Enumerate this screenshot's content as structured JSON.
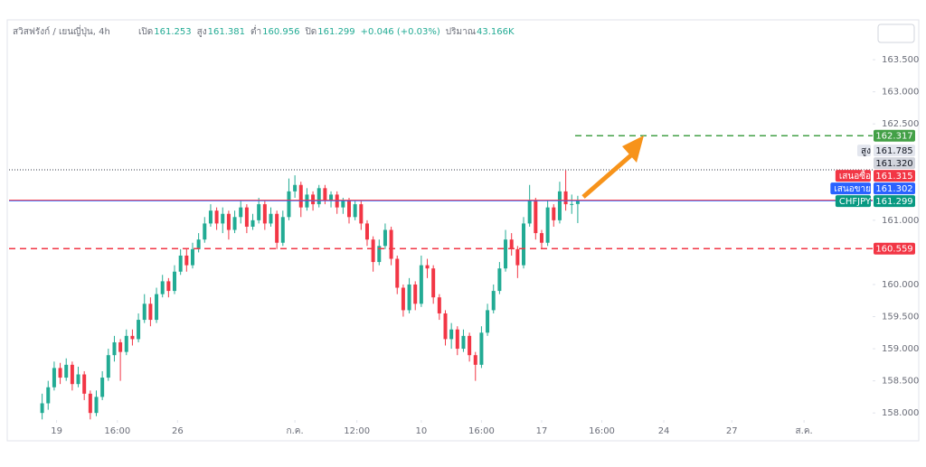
{
  "chart_data": {
    "type": "candlestick",
    "symbol": "สวิสฟรังก์ / เยนญี่ปุ่น, 4h",
    "legend_values": [
      {
        "label": "เปิด",
        "value": 161.253
      },
      {
        "label": "สูง",
        "value": 161.381
      },
      {
        "label": "ต่ำ",
        "value": 160.956
      },
      {
        "label": "ปิด",
        "value": 161.299
      }
    ],
    "change": "+0.046 (+0.03%)",
    "volume_label": "ปริมาณ",
    "volume": "43.166K",
    "up_color": "#22ab94",
    "down_color": "#f23645",
    "open": [
      158.0,
      158.15,
      158.4,
      158.7,
      158.55,
      158.75,
      158.45,
      158.6,
      158.3,
      158.0,
      158.25,
      158.55,
      158.9,
      159.1,
      158.95,
      159.2,
      159.15,
      159.45,
      159.7,
      159.45,
      159.85,
      160.05,
      159.9,
      160.2,
      160.45,
      160.3,
      160.55,
      160.7,
      160.95,
      161.15,
      160.95,
      161.1,
      160.85,
      161.05,
      161.2,
      160.9,
      161.0,
      161.25,
      160.95,
      161.1,
      160.65,
      161.05,
      161.45,
      161.55,
      161.2,
      161.4,
      161.25,
      161.5,
      161.3,
      161.4,
      161.2,
      161.3,
      161.05,
      161.25,
      160.95,
      160.7,
      160.35,
      160.6,
      160.85,
      160.4,
      159.95,
      159.6,
      160.0,
      159.7,
      160.3,
      160.25,
      159.8,
      159.55,
      159.15,
      159.3,
      159.0,
      159.2,
      158.9,
      158.75,
      159.25,
      159.6,
      159.9,
      160.25,
      160.7,
      160.55,
      160.3,
      160.95,
      161.3,
      160.8,
      160.65,
      161.2,
      161.0,
      161.45,
      161.25,
      161.253
    ],
    "high": [
      158.3,
      158.5,
      158.8,
      158.78,
      158.85,
      158.8,
      158.72,
      158.65,
      158.35,
      158.35,
      158.65,
      159.0,
      159.2,
      159.15,
      159.3,
      159.3,
      159.55,
      159.85,
      159.8,
      159.95,
      160.15,
      160.1,
      160.3,
      160.55,
      160.55,
      160.65,
      160.8,
      161.05,
      161.25,
      161.2,
      161.2,
      161.15,
      161.15,
      161.3,
      161.25,
      161.1,
      161.35,
      161.3,
      161.2,
      161.15,
      161.15,
      161.65,
      161.7,
      161.6,
      161.5,
      161.45,
      161.55,
      161.55,
      161.45,
      161.45,
      161.35,
      161.35,
      161.3,
      161.3,
      161.0,
      160.75,
      160.7,
      160.95,
      160.9,
      160.45,
      160.0,
      160.1,
      160.05,
      160.45,
      160.4,
      160.3,
      159.85,
      159.6,
      159.4,
      159.35,
      159.3,
      159.25,
      158.95,
      159.35,
      159.7,
      160.0,
      160.35,
      160.85,
      160.8,
      160.6,
      161.05,
      161.55,
      161.35,
      160.85,
      161.3,
      161.25,
      161.6,
      161.785,
      161.4,
      161.381
    ],
    "low": [
      157.9,
      158.05,
      158.35,
      158.45,
      158.5,
      158.35,
      158.4,
      158.2,
      157.9,
      157.95,
      158.2,
      158.5,
      158.8,
      158.5,
      158.9,
      159.05,
      159.1,
      159.4,
      159.35,
      159.4,
      159.8,
      159.8,
      159.85,
      160.15,
      160.2,
      160.25,
      160.5,
      160.65,
      160.9,
      160.85,
      160.8,
      160.7,
      160.8,
      160.95,
      160.8,
      160.85,
      160.95,
      160.85,
      160.9,
      160.55,
      160.6,
      161.0,
      161.35,
      161.05,
      161.15,
      161.15,
      161.2,
      161.25,
      161.2,
      161.1,
      161.1,
      160.95,
      161.0,
      160.85,
      160.6,
      160.2,
      160.3,
      160.55,
      160.3,
      159.85,
      159.5,
      159.55,
      159.6,
      159.65,
      160.1,
      159.7,
      159.45,
      159.05,
      159.0,
      158.9,
      158.95,
      158.8,
      158.5,
      158.7,
      159.2,
      159.55,
      159.85,
      160.2,
      160.45,
      160.1,
      160.25,
      160.9,
      160.7,
      160.55,
      160.6,
      160.9,
      160.95,
      161.15,
      161.1,
      160.956
    ],
    "close": [
      158.15,
      158.4,
      158.7,
      158.55,
      158.75,
      158.45,
      158.6,
      158.3,
      158.0,
      158.25,
      158.55,
      158.9,
      159.1,
      158.95,
      159.2,
      159.15,
      159.45,
      159.7,
      159.45,
      159.85,
      160.05,
      159.9,
      160.2,
      160.45,
      160.3,
      160.55,
      160.7,
      160.95,
      161.15,
      160.95,
      161.1,
      160.85,
      161.05,
      161.2,
      160.9,
      161.0,
      161.25,
      160.95,
      161.1,
      160.65,
      161.05,
      161.45,
      161.55,
      161.2,
      161.4,
      161.25,
      161.5,
      161.3,
      161.4,
      161.2,
      161.3,
      161.05,
      161.25,
      160.95,
      160.7,
      160.35,
      160.6,
      160.85,
      160.4,
      159.95,
      159.6,
      160.0,
      159.7,
      160.3,
      160.25,
      159.8,
      159.55,
      159.15,
      159.3,
      159.0,
      159.2,
      158.9,
      158.75,
      159.25,
      159.6,
      159.9,
      160.25,
      160.7,
      160.55,
      160.3,
      160.95,
      161.3,
      160.8,
      160.65,
      161.2,
      161.0,
      161.45,
      161.25,
      161.253,
      161.299
    ],
    "xlim": [
      -5.5,
      138
    ],
    "xticks": [
      {
        "value": 2.4,
        "label": "19"
      },
      {
        "value": 12.5,
        "label": "16:00"
      },
      {
        "value": 22.5,
        "label": "26"
      },
      {
        "value": 42,
        "label": "ก.ค."
      },
      {
        "value": 52.3,
        "label": "12:00"
      },
      {
        "value": 63,
        "label": "10"
      },
      {
        "value": 73,
        "label": "16:00"
      },
      {
        "value": 83,
        "label": "17"
      },
      {
        "value": 93,
        "label": "16:00"
      },
      {
        "value": 103.3,
        "label": "24"
      },
      {
        "value": 114.6,
        "label": "27"
      },
      {
        "value": 126.6,
        "label": "ส.ค."
      }
    ],
    "ylim": [
      157.89,
      164.12
    ],
    "yticks": [
      {
        "value": 158,
        "label": "158.000"
      },
      {
        "value": 158.5,
        "label": "158.500"
      },
      {
        "value": 159,
        "label": "159.000"
      },
      {
        "value": 159.5,
        "label": "159.500"
      },
      {
        "value": 160,
        "label": "160.000"
      },
      {
        "value": 161,
        "label": "161.000"
      },
      {
        "value": 162.5,
        "label": "162.500"
      },
      {
        "value": 163,
        "label": "163.000"
      },
      {
        "value": 163.5,
        "label": "163.500"
      }
    ],
    "price_markers": [
      {
        "value": 162.317,
        "label": "162.317",
        "color": "#43a047",
        "line": "dashed-right"
      },
      {
        "tag": "สูง",
        "value": 161.785,
        "label": "161.785",
        "color": "#e3e6ee",
        "line": "dotted"
      },
      {
        "value": 161.32,
        "label": "161.320",
        "color": "#d1d4dc"
      },
      {
        "tag": "เสนอซื้อ",
        "value": 161.315,
        "label": "161.315",
        "color": "#f23645",
        "line": "solid"
      },
      {
        "tag": "เสนอขาย",
        "value": 161.302,
        "label": "161.302",
        "color": "#2962ff",
        "line": "solid"
      },
      {
        "tag": "CHFJPY",
        "value": 161.299,
        "label": "161.299",
        "color": "#089981"
      },
      {
        "value": 160.559,
        "label": "160.559",
        "color": "#f23645",
        "line": "dashed"
      }
    ]
  }
}
